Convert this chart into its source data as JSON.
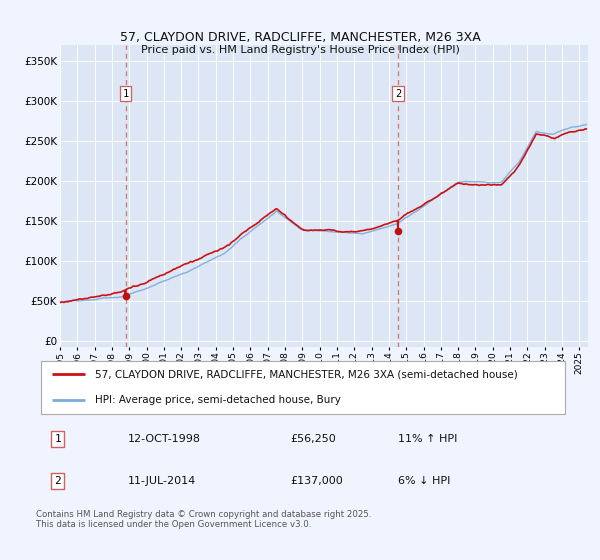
{
  "title": "57, CLAYDON DRIVE, RADCLIFFE, MANCHESTER, M26 3XA",
  "subtitle": "Price paid vs. HM Land Registry's House Price Index (HPI)",
  "bg_color": "#f0f4ff",
  "plot_bg_color": "#dce6f5",
  "grid_color": "#ffffff",
  "hpi_color": "#7aabdb",
  "price_color": "#cc1111",
  "marker_color": "#bb1111",
  "vline_color": "#d06060",
  "sale1_year": 1998.79,
  "sale1_price": 56250,
  "sale2_year": 2014.52,
  "sale2_price": 137000,
  "ylabel_vals": [
    0,
    50000,
    100000,
    150000,
    200000,
    250000,
    300000,
    350000
  ],
  "ylabel_strs": [
    "£0",
    "£50K",
    "£100K",
    "£150K",
    "£200K",
    "£250K",
    "£300K",
    "£350K"
  ],
  "xmin": 1995,
  "xmax": 2025.5,
  "ymin": -8000,
  "ymax": 370000,
  "legend_line1": "57, CLAYDON DRIVE, RADCLIFFE, MANCHESTER, M26 3XA (semi-detached house)",
  "legend_line2": "HPI: Average price, semi-detached house, Bury",
  "sale1_date": "12-OCT-1998",
  "sale1_pct": "11% ↑ HPI",
  "sale2_date": "11-JUL-2014",
  "sale2_pct": "6% ↓ HPI",
  "footer": "Contains HM Land Registry data © Crown copyright and database right 2025.\nThis data is licensed under the Open Government Licence v3.0."
}
